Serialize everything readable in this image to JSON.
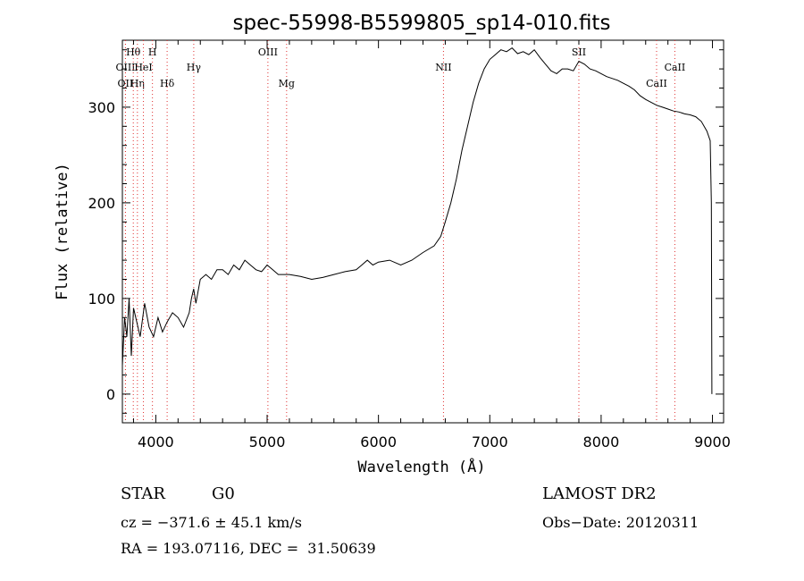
{
  "chart_data": {
    "type": "line",
    "title": "spec-55998-B5599805_sp14-010.fits",
    "xlabel": "Wavelength (Å)",
    "ylabel": "Flux (relative)",
    "xlim": [
      3700,
      9100
    ],
    "ylim": [
      -30,
      370
    ],
    "x_ticks": [
      4000,
      5000,
      6000,
      7000,
      8000,
      9000
    ],
    "y_ticks": [
      0,
      100,
      200,
      300
    ],
    "grid": false,
    "series": [
      {
        "color": "#000000",
        "x": [
          3700,
          3720,
          3740,
          3760,
          3780,
          3800,
          3830,
          3860,
          3900,
          3940,
          3980,
          4020,
          4060,
          4100,
          4150,
          4200,
          4250,
          4300,
          4320,
          4340,
          4360,
          4400,
          4450,
          4500,
          4550,
          4600,
          4650,
          4700,
          4750,
          4800,
          4850,
          4900,
          4950,
          5000,
          5050,
          5100,
          5150,
          5200,
          5300,
          5400,
          5500,
          5600,
          5700,
          5800,
          5850,
          5900,
          5950,
          6000,
          6100,
          6200,
          6300,
          6400,
          6500,
          6560,
          6600,
          6650,
          6700,
          6750,
          6800,
          6850,
          6900,
          6950,
          7000,
          7050,
          7100,
          7150,
          7200,
          7250,
          7300,
          7350,
          7400,
          7450,
          7500,
          7550,
          7600,
          7650,
          7700,
          7750,
          7800,
          7850,
          7900,
          7950,
          8000,
          8050,
          8100,
          8150,
          8200,
          8250,
          8300,
          8350,
          8400,
          8450,
          8500,
          8550,
          8600,
          8650,
          8700,
          8750,
          8800,
          8850,
          8900,
          8950,
          8980,
          8990,
          8995
        ],
        "y": [
          30,
          80,
          60,
          100,
          40,
          90,
          75,
          60,
          95,
          70,
          60,
          80,
          65,
          75,
          85,
          80,
          70,
          85,
          100,
          110,
          95,
          120,
          125,
          120,
          130,
          130,
          125,
          135,
          130,
          140,
          135,
          130,
          128,
          135,
          130,
          125,
          125,
          125,
          123,
          120,
          122,
          125,
          128,
          130,
          135,
          140,
          135,
          138,
          140,
          135,
          140,
          148,
          155,
          165,
          180,
          200,
          225,
          255,
          280,
          305,
          325,
          340,
          350,
          355,
          360,
          358,
          362,
          356,
          358,
          355,
          360,
          352,
          345,
          338,
          335,
          340,
          340,
          338,
          348,
          345,
          340,
          338,
          335,
          332,
          330,
          328,
          325,
          322,
          318,
          312,
          308,
          305,
          302,
          300,
          298,
          296,
          295,
          293,
          292,
          290,
          285,
          275,
          265,
          200,
          0
        ]
      }
    ],
    "line_markers": [
      {
        "wavelength": 3727,
        "label": "OII",
        "row": 2
      },
      {
        "wavelength": 3728,
        "label": "OIII",
        "row": 1
      },
      {
        "wavelength": 3798,
        "label": "Hθ",
        "row": 0
      },
      {
        "wavelength": 3835,
        "label": "Hη",
        "row": 2
      },
      {
        "wavelength": 3889,
        "label": "HeI",
        "row": 1
      },
      {
        "wavelength": 3970,
        "label": "H",
        "row": 0
      },
      {
        "wavelength": 4102,
        "label": "Hδ",
        "row": 2
      },
      {
        "wavelength": 4341,
        "label": "Hγ",
        "row": 1
      },
      {
        "wavelength": 5007,
        "label": "OIII",
        "row": 0
      },
      {
        "wavelength": 5175,
        "label": "Mg",
        "row": 2
      },
      {
        "wavelength": 6584,
        "label": "NII",
        "row": 1
      },
      {
        "wavelength": 7800,
        "label": "SII",
        "row": 0
      },
      {
        "wavelength": 8498,
        "label": "CaII",
        "row": 2
      },
      {
        "wavelength": 8662,
        "label": "CaII",
        "row": 1
      }
    ],
    "marker_color": "#e03030"
  },
  "footer": {
    "class_label": "STAR",
    "subclass_label": "G0",
    "survey": "LAMOST DR2",
    "cz": "cz = −371.6 ± 45.1 km/s",
    "obs_date": "Obs−Date: 20120311",
    "coords": "RA = 193.07116, DEC =  31.50639"
  }
}
